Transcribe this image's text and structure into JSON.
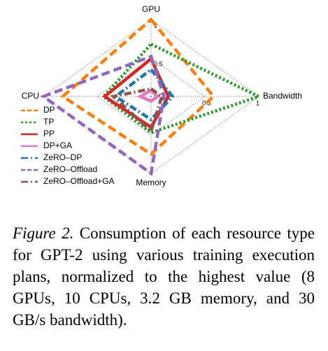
{
  "chart_data": {
    "type": "radar",
    "axes": [
      "GPU",
      "Bandwidth",
      "Memory",
      "CPU"
    ],
    "rlim": [
      0,
      1
    ],
    "rticks": [
      0.5,
      1
    ],
    "legend": "lower left",
    "series": [
      {
        "name": "DP",
        "color": "#ff7f0e",
        "linestyle": "dashed",
        "values": [
          1.0,
          0.58,
          0.75,
          0.82
        ]
      },
      {
        "name": "TP",
        "color": "#2ca02c",
        "linestyle": "dotted",
        "values": [
          0.68,
          1.0,
          0.47,
          0.44
        ]
      },
      {
        "name": "PP",
        "color": "#d62728",
        "linestyle": "solid",
        "values": [
          0.49,
          0.16,
          0.4,
          0.43
        ]
      },
      {
        "name": "DP+GA",
        "color": "#e377c2",
        "linestyle": "solid",
        "values": [
          0.08,
          0.06,
          0.06,
          0.1
        ]
      },
      {
        "name": "ZeRO–DP",
        "color": "#1f77b4",
        "linestyle": "dashdot",
        "values": [
          0.35,
          0.2,
          0.3,
          0.33
        ]
      },
      {
        "name": "ZeRO–Offload",
        "color": "#9467bd",
        "linestyle": "dashed",
        "values": [
          0.52,
          0.12,
          1.0,
          1.0
        ]
      },
      {
        "name": "ZeRO–Offload+GA",
        "color": "#8c564b",
        "linestyle": "dashdot",
        "values": [
          0.1,
          0.1,
          0.45,
          0.35
        ]
      }
    ]
  },
  "caption": {
    "label": "Figure 2.",
    "text": "Consumption of each resource type for GPT-2 using various training execution plans, normalized to the highest value (8 GPUs, 10 CPUs, 3.2 GB memory, and 30 GB/s bandwidth)."
  }
}
